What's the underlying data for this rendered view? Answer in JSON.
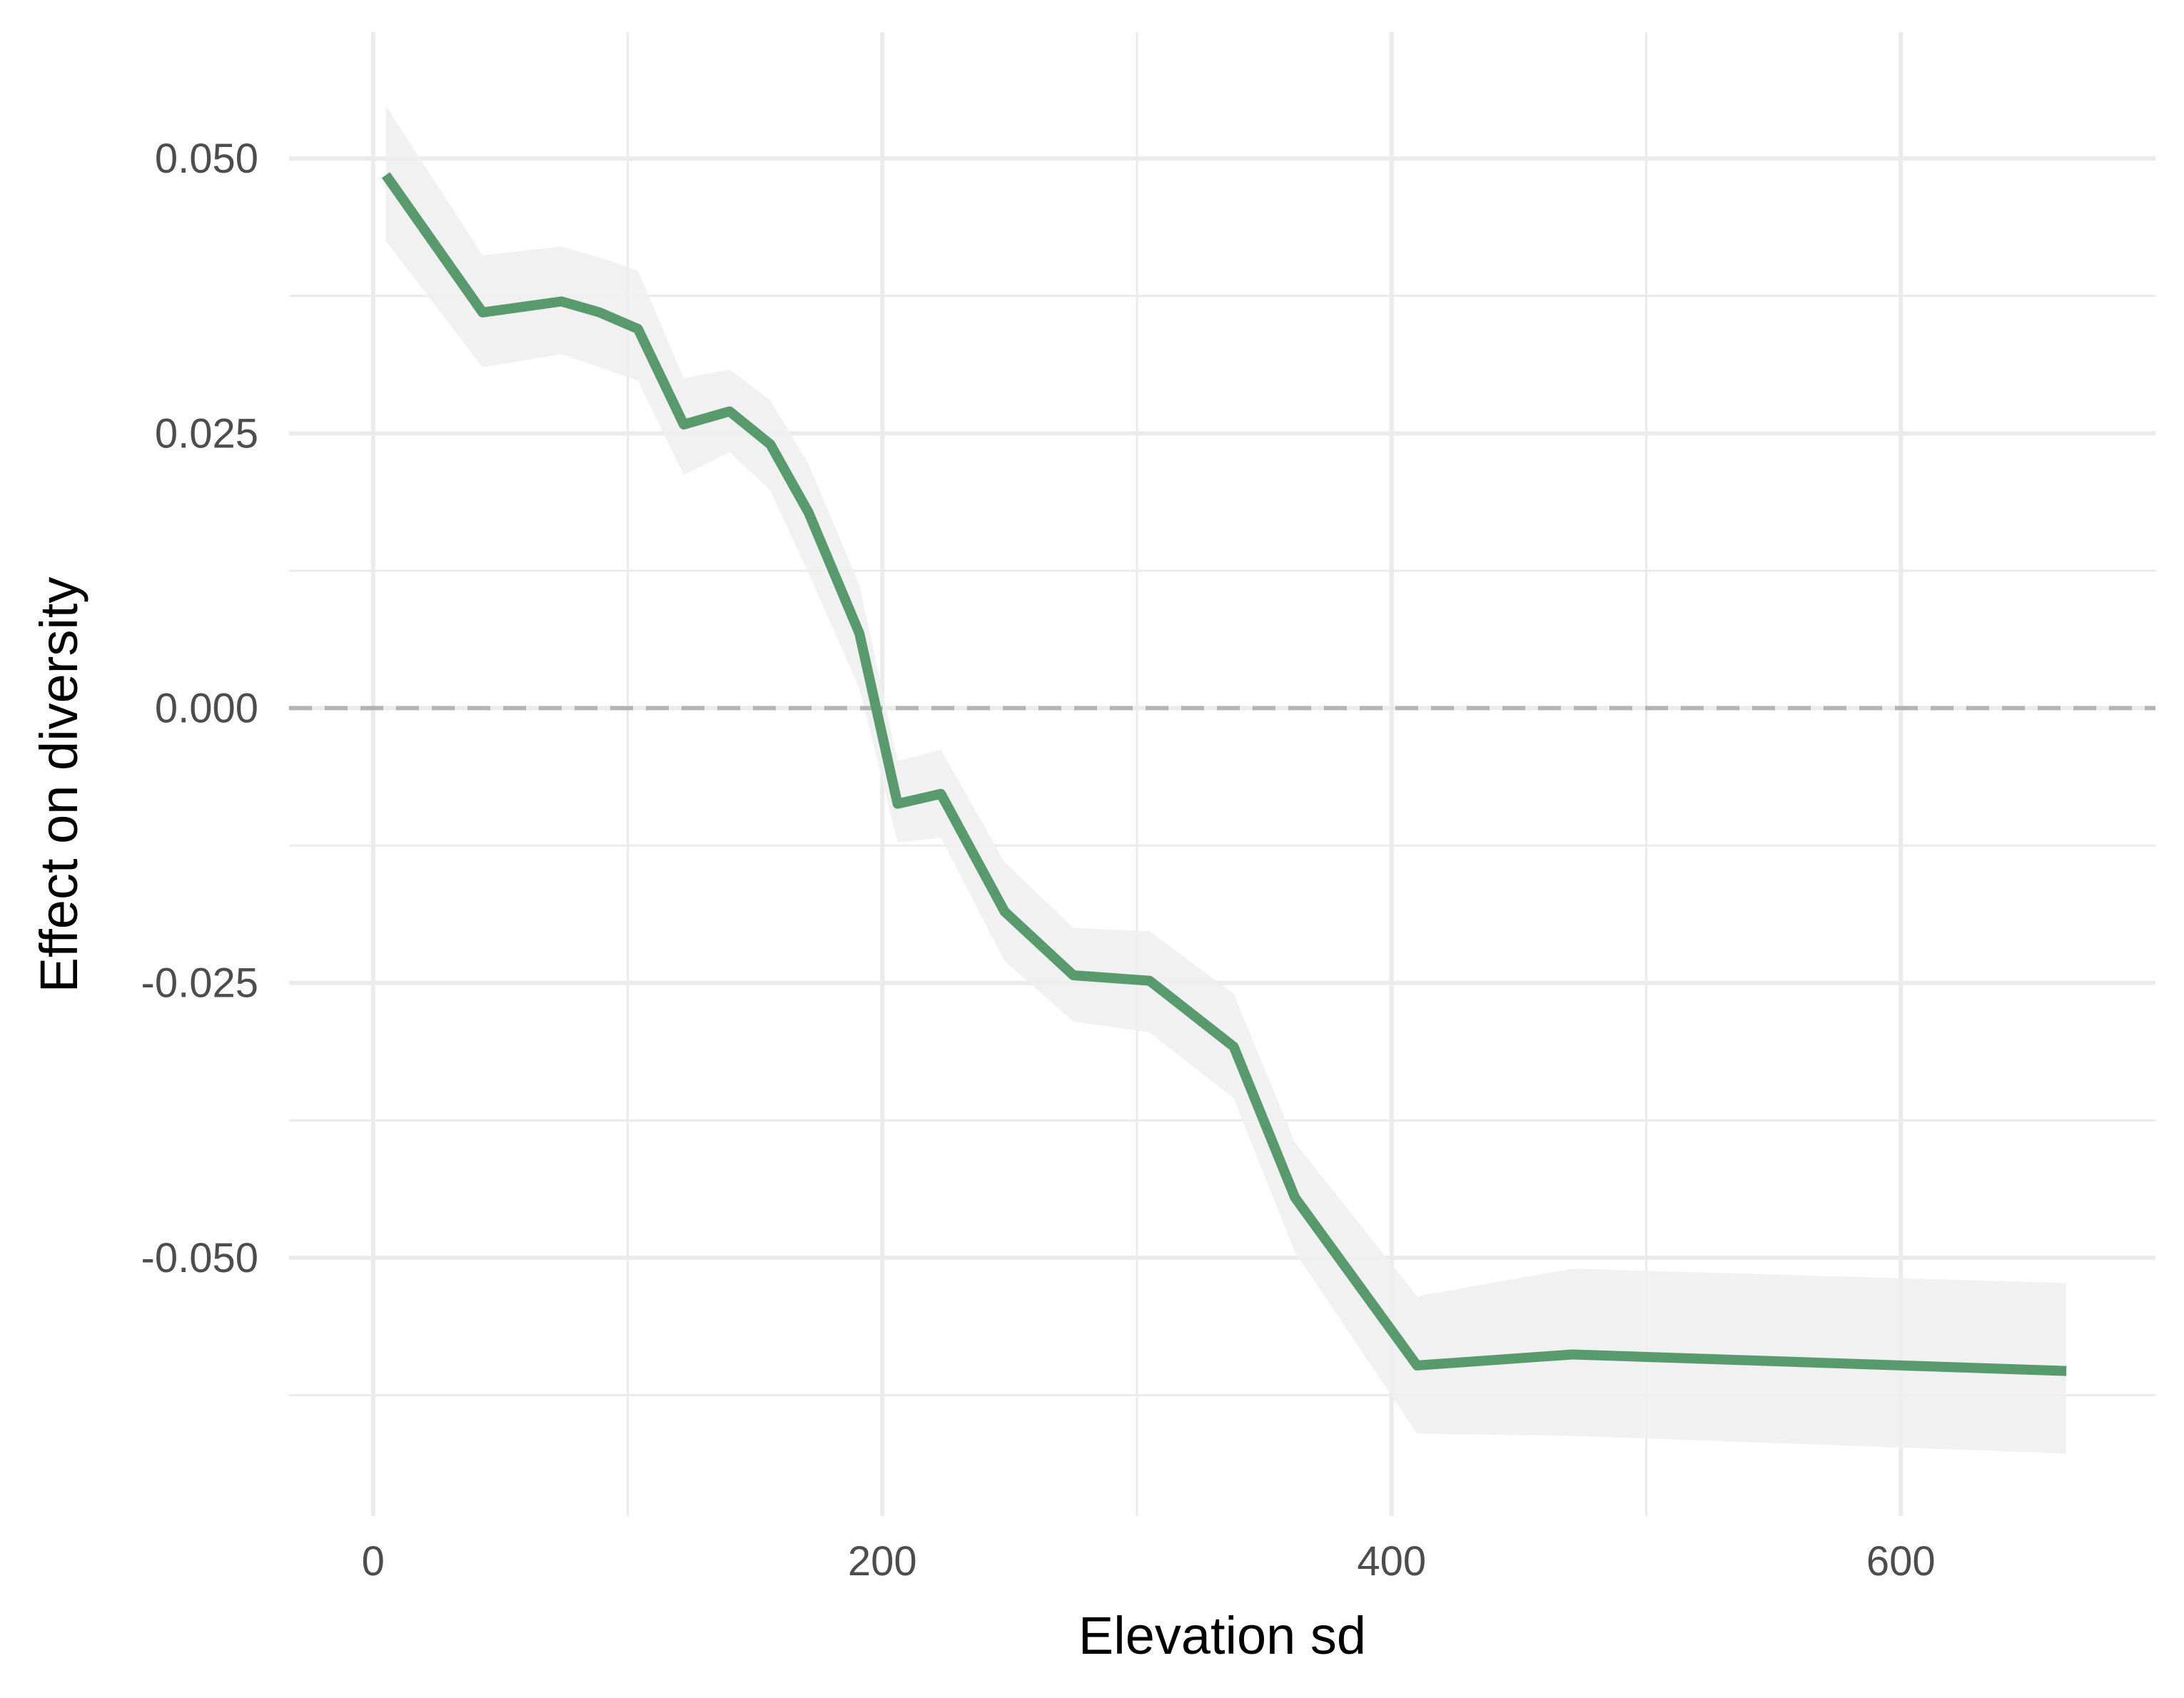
{
  "chart_data": {
    "type": "line",
    "xlabel": "Elevation sd",
    "ylabel": "Effect on diversity",
    "xlim": [
      -33,
      700
    ],
    "ylim": [
      -0.0735,
      0.0615
    ],
    "x_ticks": [
      0,
      200,
      400,
      600
    ],
    "x_minor_ticks": [
      100,
      300,
      500
    ],
    "y_ticks": [
      -0.05,
      -0.025,
      0.0,
      0.025,
      0.05
    ],
    "y_minor_ticks": [
      -0.0625,
      -0.0375,
      -0.0125,
      0.0125,
      0.0375
    ],
    "x_tick_labels": [
      "0",
      "200",
      "400",
      "600"
    ],
    "y_tick_labels": [
      "-0.050",
      "-0.025",
      "0.000",
      "0.025",
      "0.050"
    ],
    "reference_line": {
      "y": 0,
      "style": "dashed",
      "color": "#b3b3b3"
    },
    "grid": true,
    "colors": {
      "line": "#579a6b",
      "ribbon": "#efefef",
      "grid": "#ebebeb"
    },
    "series": [
      {
        "x": [
          5,
          43,
          74,
          89,
          104,
          122,
          140,
          156,
          171,
          191,
          206,
          223,
          248,
          275,
          305,
          338,
          362,
          410,
          471,
          665
        ],
        "y": [
          0.0485,
          0.036,
          0.037,
          0.036,
          0.0345,
          0.0258,
          0.027,
          0.024,
          0.0178,
          0.0068,
          -0.0087,
          -0.0078,
          -0.0185,
          -0.0243,
          -0.0248,
          -0.0308,
          -0.0445,
          -0.0598,
          -0.0588,
          -0.0603
        ],
        "lower": [
          0.0425,
          0.031,
          0.0322,
          0.031,
          0.0298,
          0.0212,
          0.0233,
          0.0198,
          0.0123,
          0.0018,
          -0.0122,
          -0.0118,
          -0.023,
          -0.0285,
          -0.0295,
          -0.0355,
          -0.0495,
          -0.066,
          -0.0662,
          -0.0678
        ],
        "upper": [
          0.0548,
          0.0412,
          0.042,
          0.041,
          0.0398,
          0.03,
          0.0308,
          0.028,
          0.0222,
          0.0112,
          -0.0048,
          -0.0038,
          -0.014,
          -0.02,
          -0.0203,
          -0.026,
          -0.0395,
          -0.0535,
          -0.051,
          -0.0523
        ]
      }
    ]
  }
}
